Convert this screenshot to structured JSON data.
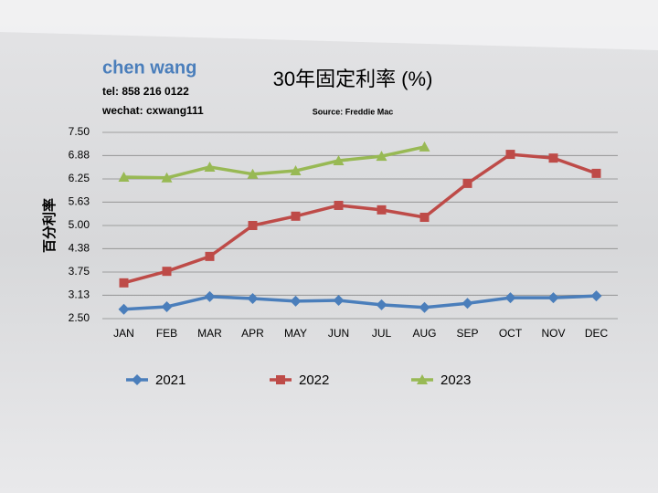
{
  "chart_data": {
    "type": "line",
    "title": "30年固定利率 (%)",
    "subtitle": "Source: Freddie Mac",
    "annotations": [
      "chen wang",
      "tel: 858 216 0122",
      "wechat: cxwang111"
    ],
    "y_label": "百分利率",
    "categories": [
      "JAN",
      "FEB",
      "MAR",
      "APR",
      "MAY",
      "JUN",
      "JUL",
      "AUG",
      "SEP",
      "OCT",
      "NOV",
      "DEC"
    ],
    "series": [
      {
        "name": "2021",
        "color": "#4a7ebb",
        "marker": "diamond",
        "values": [
          2.75,
          2.82,
          3.09,
          3.04,
          2.97,
          2.99,
          2.87,
          2.8,
          2.91,
          3.06,
          3.06,
          3.11
        ]
      },
      {
        "name": "2022",
        "color": "#be4b48",
        "marker": "square",
        "values": [
          3.46,
          3.77,
          4.17,
          5.0,
          5.25,
          5.54,
          5.42,
          5.22,
          6.13,
          6.91,
          6.81,
          6.4
        ]
      },
      {
        "name": "2023",
        "color": "#98b954",
        "marker": "triangle",
        "values": [
          6.3,
          6.28,
          6.57,
          6.38,
          6.47,
          6.74,
          6.86,
          7.11,
          null,
          null,
          null,
          null
        ]
      }
    ],
    "ylim": [
      2.5,
      7.5
    ],
    "yticks": [
      {
        "value": 2.5,
        "label": "2.50"
      },
      {
        "value": 3.13,
        "label": "3.13"
      },
      {
        "value": 3.75,
        "label": "3.75"
      },
      {
        "value": 4.38,
        "label": "4.38"
      },
      {
        "value": 5.0,
        "label": "5.00"
      },
      {
        "value": 5.63,
        "label": "5.63"
      },
      {
        "value": 6.25,
        "label": "6.25"
      },
      {
        "value": 6.88,
        "label": "6.88"
      },
      {
        "value": 7.5,
        "label": "7.50"
      }
    ],
    "grid": true,
    "legend": "bottom"
  }
}
